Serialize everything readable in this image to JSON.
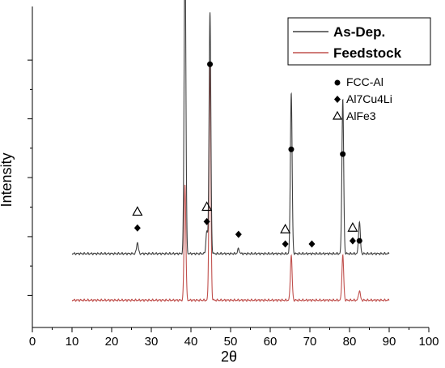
{
  "chart_data": {
    "type": "line",
    "xlabel": "2θ",
    "ylabel": "Intensity",
    "xlim": [
      0,
      100
    ],
    "x_ticks": [
      0,
      10,
      20,
      30,
      40,
      50,
      60,
      70,
      80,
      90,
      100
    ],
    "y_ticks_labeled": false,
    "grid": false,
    "legend_position": "top-right",
    "series": [
      {
        "name": "As-Dep.",
        "color": "#404040",
        "baseline": 0.23,
        "peaks": [
          {
            "x": 26.5,
            "height": 0.035
          },
          {
            "x": 38.5,
            "height": 0.97
          },
          {
            "x": 44.0,
            "height": 0.07
          },
          {
            "x": 44.8,
            "height": 0.75
          },
          {
            "x": 52.0,
            "height": 0.015
          },
          {
            "x": 65.3,
            "height": 0.5
          },
          {
            "x": 78.3,
            "height": 0.48
          },
          {
            "x": 82.5,
            "height": 0.1
          }
        ]
      },
      {
        "name": "Feedstock",
        "color": "#c0504d",
        "baseline": 0.085,
        "peaks": [
          {
            "x": 38.5,
            "height": 0.36
          },
          {
            "x": 44.8,
            "height": 0.74
          },
          {
            "x": 65.3,
            "height": 0.14
          },
          {
            "x": 78.3,
            "height": 0.14
          },
          {
            "x": 82.5,
            "height": 0.03
          }
        ]
      }
    ],
    "phase_legend": [
      {
        "symbol": "●",
        "label": "FCC-Al"
      },
      {
        "symbol": "◆",
        "label": "Al7Cu4Li"
      },
      {
        "symbol": "Δ",
        "label": "AlFe3"
      }
    ],
    "markers": [
      {
        "symbol": "●",
        "x": 38.5,
        "y": 1.03
      },
      {
        "symbol": "●",
        "x": 44.8,
        "y": 0.82
      },
      {
        "symbol": "●",
        "x": 65.3,
        "y": 0.555
      },
      {
        "symbol": "●",
        "x": 78.3,
        "y": 0.54
      },
      {
        "symbol": "●",
        "x": 82.5,
        "y": 0.27
      },
      {
        "symbol": "◆",
        "x": 26.5,
        "y": 0.31
      },
      {
        "symbol": "◆",
        "x": 44.0,
        "y": 0.33
      },
      {
        "symbol": "◆",
        "x": 52.0,
        "y": 0.29
      },
      {
        "symbol": "◆",
        "x": 63.8,
        "y": 0.26
      },
      {
        "symbol": "◆",
        "x": 70.5,
        "y": 0.26
      },
      {
        "symbol": "◆",
        "x": 80.8,
        "y": 0.27
      },
      {
        "symbol": "Δ",
        "x": 26.5,
        "y": 0.36
      },
      {
        "symbol": "Δ",
        "x": 44.0,
        "y": 0.375
      },
      {
        "symbol": "Δ",
        "x": 63.8,
        "y": 0.305
      },
      {
        "symbol": "Δ",
        "x": 80.8,
        "y": 0.31
      }
    ]
  }
}
